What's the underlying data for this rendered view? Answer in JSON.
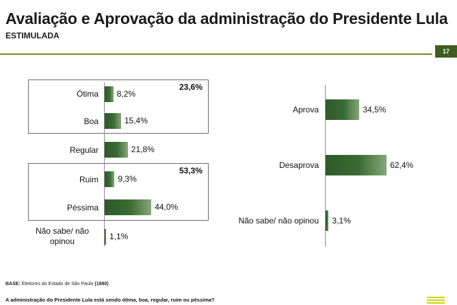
{
  "header": {
    "title": "Avaliação e Aprovação da administração do Presidente Lula",
    "subtitle": "ESTIMULADA",
    "page_number": "17"
  },
  "footer": {
    "base_label": "BASE:",
    "base_text": "Eleitores do Estado de São Paulo",
    "base_n": "(1680)",
    "question": "A administração do Presidente Lula está sendo ótima, boa, regular, ruim ou péssima?"
  },
  "colors": {
    "bar": "#3b6b34",
    "rule": "#6d8a2c",
    "badge": "#3f5d1f",
    "logo": "#c8d400"
  },
  "chart_data": [
    {
      "type": "bar",
      "orientation": "horizontal",
      "categories": [
        "Ótima",
        "Boa",
        "Regular",
        "Ruim",
        "Péssima",
        "Não sabe/ não opinou"
      ],
      "values": [
        8.2,
        15.4,
        21.8,
        9.3,
        44.0,
        1.1
      ],
      "value_labels": [
        "8,2%",
        "15,4%",
        "21,8%",
        "9,3%",
        "44,0%",
        "1,1%"
      ],
      "groups": [
        {
          "label": "23,6%",
          "categories": [
            "Ótima",
            "Boa"
          ]
        },
        {
          "label": "53,3%",
          "categories": [
            "Ruim",
            "Péssima"
          ]
        }
      ],
      "xlim": [
        0,
        70
      ]
    },
    {
      "type": "bar",
      "orientation": "horizontal",
      "categories": [
        "Aprova",
        "Desaprova",
        "Não sabe/ não opinou"
      ],
      "values": [
        34.5,
        62.4,
        3.1
      ],
      "value_labels": [
        "34,5%",
        "62,4%",
        "3,1%"
      ],
      "xlim": [
        0,
        70
      ]
    }
  ]
}
